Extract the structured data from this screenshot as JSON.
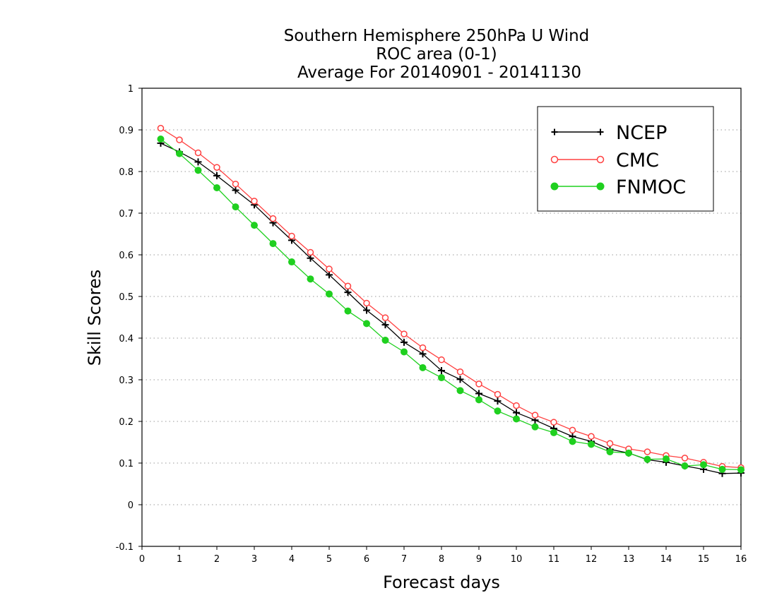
{
  "chart_data": {
    "type": "line",
    "title_lines": [
      "Southern Hemisphere 250hPa U Wind",
      "ROC area (0-1)",
      "Average For 20140901 - 20141130"
    ],
    "xlabel": "Forecast days",
    "ylabel": "Skill Scores",
    "xlim": [
      0,
      16
    ],
    "ylim": [
      -0.1,
      1
    ],
    "x_ticks": [
      0,
      1,
      2,
      3,
      4,
      5,
      6,
      7,
      8,
      9,
      10,
      11,
      12,
      13,
      14,
      15,
      16
    ],
    "y_ticks": [
      -0.1,
      0,
      0.1,
      0.2,
      0.3,
      0.4,
      0.5,
      0.6,
      0.7,
      0.8,
      0.9,
      1
    ],
    "y_tick_labels": [
      "-0.1",
      "0",
      "0.1",
      "0.2",
      "0.3",
      "0.4",
      "0.5",
      "0.6",
      "0.7",
      "0.8",
      "0.9",
      "1"
    ],
    "grid": "horizontal dotted",
    "legend_position": "top-right",
    "x": [
      0.5,
      1,
      1.5,
      2,
      2.5,
      3,
      3.5,
      4,
      4.5,
      5,
      5.5,
      6,
      6.5,
      7,
      7.5,
      8,
      8.5,
      9,
      9.5,
      10,
      10.5,
      11,
      11.5,
      12,
      12.5,
      13,
      13.5,
      14,
      14.5,
      15,
      15.5,
      16
    ],
    "series": [
      {
        "name": "NCEP",
        "color": "#000000",
        "marker": "plus",
        "values": [
          0.868,
          0.847,
          0.823,
          0.79,
          0.755,
          0.72,
          0.677,
          0.635,
          0.592,
          0.552,
          0.51,
          0.467,
          0.432,
          0.39,
          0.362,
          0.322,
          0.301,
          0.267,
          0.249,
          0.221,
          0.203,
          0.183,
          0.164,
          0.152,
          0.133,
          0.124,
          0.108,
          0.102,
          0.093,
          0.085,
          0.075,
          0.076
        ]
      },
      {
        "name": "CMC",
        "color": "#ff4040",
        "marker": "open-circle",
        "values": [
          0.904,
          0.876,
          0.845,
          0.81,
          0.77,
          0.729,
          0.687,
          0.645,
          0.606,
          0.566,
          0.525,
          0.484,
          0.449,
          0.41,
          0.377,
          0.348,
          0.319,
          0.29,
          0.265,
          0.238,
          0.215,
          0.198,
          0.179,
          0.164,
          0.147,
          0.134,
          0.127,
          0.118,
          0.112,
          0.102,
          0.092,
          0.089
        ]
      },
      {
        "name": "FNMOC",
        "color": "#1fd01f",
        "marker": "filled-circle",
        "values": [
          0.878,
          0.843,
          0.803,
          0.761,
          0.715,
          0.671,
          0.627,
          0.583,
          0.542,
          0.506,
          0.465,
          0.435,
          0.395,
          0.367,
          0.329,
          0.305,
          0.274,
          0.252,
          0.225,
          0.206,
          0.187,
          0.173,
          0.152,
          0.145,
          0.127,
          0.124,
          0.109,
          0.11,
          0.093,
          0.096,
          0.085,
          0.084
        ]
      }
    ]
  }
}
